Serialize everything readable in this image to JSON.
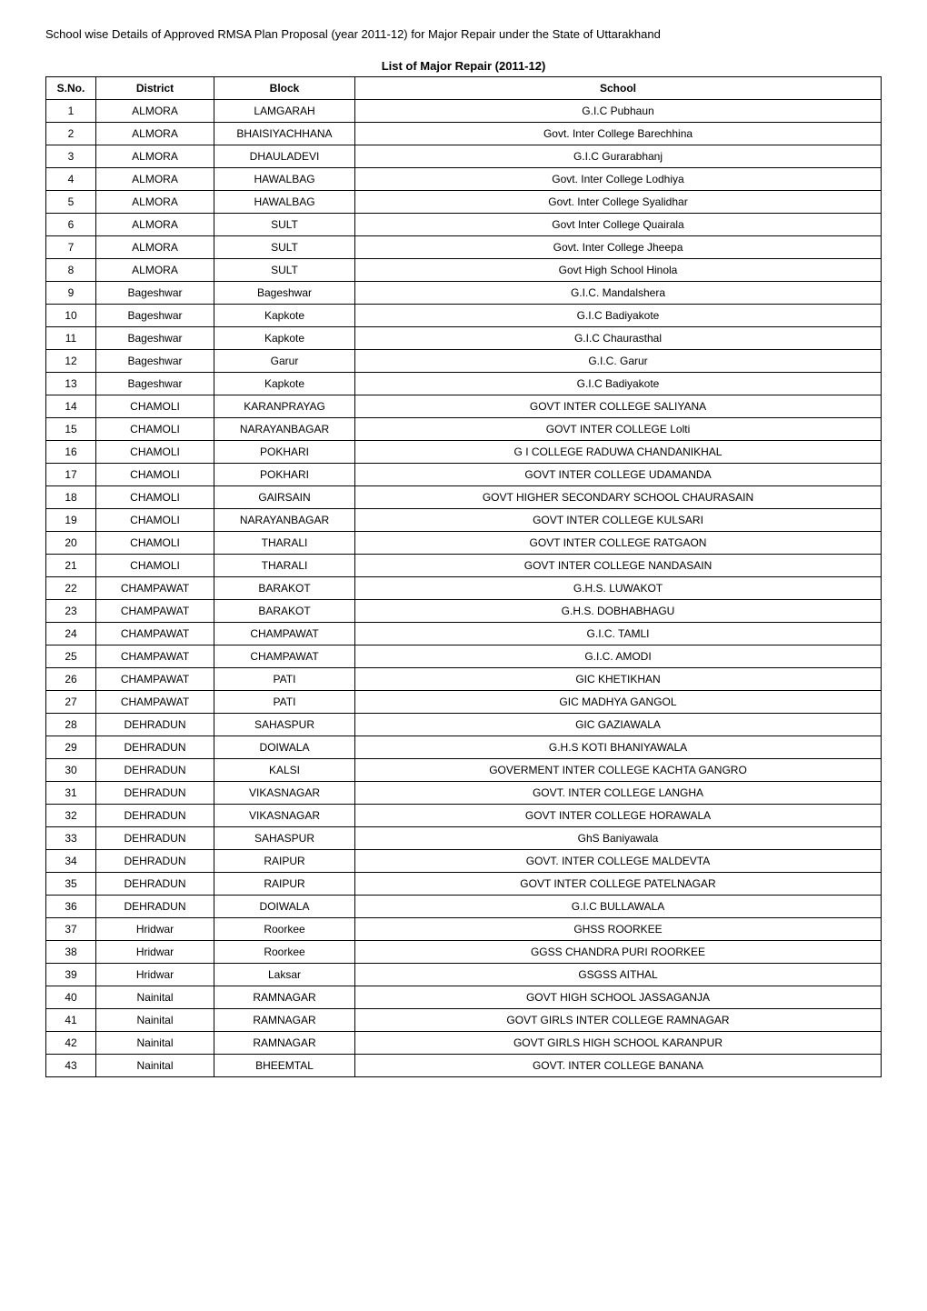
{
  "page_title": "School wise Details of Approved RMSA Plan Proposal (year 2011-12) for Major Repair under the State of Uttarakhand",
  "table_title": "List of Major Repair (2011-12)",
  "columns": [
    "S.No.",
    "District",
    "Block",
    "School"
  ],
  "rows": [
    [
      "1",
      "ALMORA",
      "LAMGARAH",
      "G.I.C Pubhaun"
    ],
    [
      "2",
      "ALMORA",
      "BHAISIYACHHANA",
      "Govt. Inter College Barechhina"
    ],
    [
      "3",
      "ALMORA",
      "DHAULADEVI",
      "G.I.C Gurarabhanj"
    ],
    [
      "4",
      "ALMORA",
      "HAWALBAG",
      "Govt. Inter College Lodhiya"
    ],
    [
      "5",
      "ALMORA",
      "HAWALBAG",
      "Govt. Inter College Syalidhar"
    ],
    [
      "6",
      "ALMORA",
      "SULT",
      "Govt Inter College Quairala"
    ],
    [
      "7",
      "ALMORA",
      "SULT",
      "Govt. Inter College Jheepa"
    ],
    [
      "8",
      "ALMORA",
      "SULT",
      "Govt High School Hinola"
    ],
    [
      "9",
      "Bageshwar",
      "Bageshwar",
      "G.I.C. Mandalshera"
    ],
    [
      "10",
      "Bageshwar",
      "Kapkote",
      "G.I.C Badiyakote"
    ],
    [
      "11",
      "Bageshwar",
      "Kapkote",
      "G.I.C Chaurasthal"
    ],
    [
      "12",
      "Bageshwar",
      "Garur",
      "G.I.C. Garur"
    ],
    [
      "13",
      "Bageshwar",
      "Kapkote",
      "G.I.C Badiyakote"
    ],
    [
      "14",
      "CHAMOLI",
      "KARANPRAYAG",
      "GOVT INTER COLLEGE SALIYANA"
    ],
    [
      "15",
      "CHAMOLI",
      "NARAYANBAGAR",
      "GOVT INTER COLLEGE Lolti"
    ],
    [
      "16",
      "CHAMOLI",
      "POKHARI",
      "G I COLLEGE RADUWA CHANDANIKHAL"
    ],
    [
      "17",
      "CHAMOLI",
      "POKHARI",
      "GOVT INTER COLLEGE UDAMANDA"
    ],
    [
      "18",
      "CHAMOLI",
      "GAIRSAIN",
      "GOVT HIGHER SECONDARY SCHOOL CHAURASAIN"
    ],
    [
      "19",
      "CHAMOLI",
      "NARAYANBAGAR",
      "GOVT INTER COLLEGE KULSARI"
    ],
    [
      "20",
      "CHAMOLI",
      "THARALI",
      "GOVT INTER COLLEGE RATGAON"
    ],
    [
      "21",
      "CHAMOLI",
      "THARALI",
      "GOVT INTER COLLEGE NANDASAIN"
    ],
    [
      "22",
      "CHAMPAWAT",
      "BARAKOT",
      "G.H.S. LUWAKOT"
    ],
    [
      "23",
      "CHAMPAWAT",
      "BARAKOT",
      "G.H.S. DOBHABHAGU"
    ],
    [
      "24",
      "CHAMPAWAT",
      "CHAMPAWAT",
      "G.I.C. TAMLI"
    ],
    [
      "25",
      "CHAMPAWAT",
      "CHAMPAWAT",
      "G.I.C. AMODI"
    ],
    [
      "26",
      "CHAMPAWAT",
      "PATI",
      "GIC KHETIKHAN"
    ],
    [
      "27",
      "CHAMPAWAT",
      "PATI",
      "GIC MADHYA GANGOL"
    ],
    [
      "28",
      "DEHRADUN",
      "SAHASPUR",
      "GIC GAZIAWALA"
    ],
    [
      "29",
      "DEHRADUN",
      "DOIWALA",
      "G.H.S KOTI BHANIYAWALA"
    ],
    [
      "30",
      "DEHRADUN",
      "KALSI",
      "GOVERMENT INTER COLLEGE KACHTA GANGRO"
    ],
    [
      "31",
      "DEHRADUN",
      "VIKASNAGAR",
      "GOVT. INTER COLLEGE LANGHA"
    ],
    [
      "32",
      "DEHRADUN",
      "VIKASNAGAR",
      "GOVT INTER COLLEGE HORAWALA"
    ],
    [
      "33",
      "DEHRADUN",
      "SAHASPUR",
      "GhS Baniyawala"
    ],
    [
      "34",
      "DEHRADUN",
      "RAIPUR",
      "GOVT. INTER COLLEGE MALDEVTA"
    ],
    [
      "35",
      "DEHRADUN",
      "RAIPUR",
      "GOVT INTER COLLEGE PATELNAGAR"
    ],
    [
      "36",
      "DEHRADUN",
      "DOIWALA",
      "G.I.C BULLAWALA"
    ],
    [
      "37",
      "Hridwar",
      "Roorkee",
      "GHSS ROORKEE"
    ],
    [
      "38",
      "Hridwar",
      "Roorkee",
      "GGSS CHANDRA PURI ROORKEE"
    ],
    [
      "39",
      "Hridwar",
      "Laksar",
      "GSGSS AITHAL"
    ],
    [
      "40",
      "Nainital",
      "RAMNAGAR",
      "GOVT HIGH SCHOOL JASSAGANJA"
    ],
    [
      "41",
      "Nainital",
      "RAMNAGAR",
      "GOVT GIRLS INTER COLLEGE RAMNAGAR"
    ],
    [
      "42",
      "Nainital",
      "RAMNAGAR",
      "GOVT GIRLS HIGH SCHOOL KARANPUR"
    ],
    [
      "43",
      "Nainital",
      "BHEEMTAL",
      "GOVT. INTER COLLEGE BANANA"
    ]
  ],
  "styling": {
    "background_color": "#ffffff",
    "text_color": "#000000",
    "border_color": "#000000",
    "font_family": "Arial, Helvetica, sans-serif",
    "title_fontsize": 13,
    "table_title_fontsize": 13,
    "cell_fontsize": 12,
    "header_fontweight": "bold",
    "cell_align": "center",
    "column_widths": {
      "sno": "55px",
      "district": "130px",
      "block": "155px",
      "school": "auto"
    }
  }
}
